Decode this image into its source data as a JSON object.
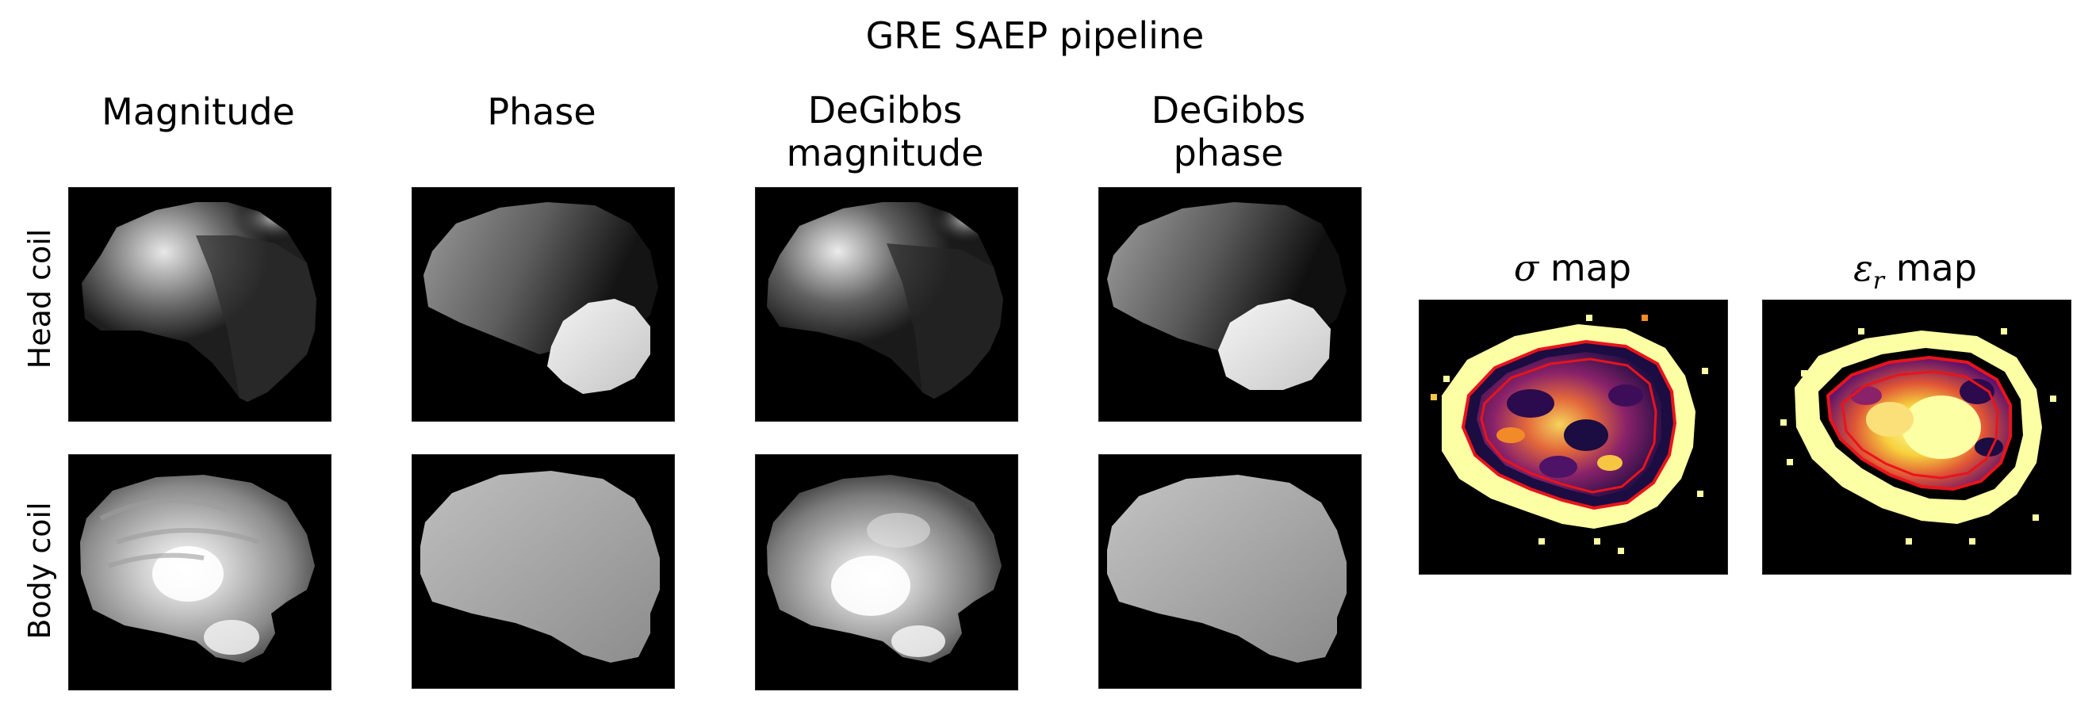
{
  "figure": {
    "title": "GRE SAEP pipeline",
    "columns": [
      {
        "line1": "",
        "line2": "Magnitude"
      },
      {
        "line1": "",
        "line2": "Phase"
      },
      {
        "line1": "DeGibbs",
        "line2": "magnitude"
      },
      {
        "line1": "DeGibbs",
        "line2": "phase"
      }
    ],
    "rows": [
      {
        "label": "Head coil"
      },
      {
        "label": "Body coil"
      }
    ],
    "maps": [
      {
        "symbol": "σ",
        "subscript": "",
        "suffix": " map"
      },
      {
        "symbol": "ε",
        "subscript": "r",
        "suffix": " map"
      }
    ]
  },
  "colors": {
    "background": "#000000",
    "contour": "#e8141c",
    "inferno_low": "#1b0c41",
    "inferno_mid": "#b5367a",
    "inferno_high": "#fcffa4"
  }
}
